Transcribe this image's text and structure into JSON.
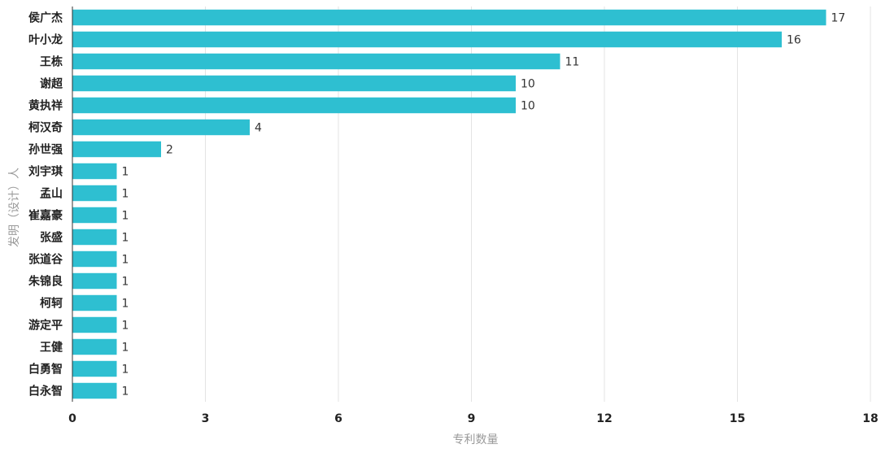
{
  "chart_data": {
    "type": "bar",
    "orientation": "horizontal",
    "categories": [
      "侯广杰",
      "叶小龙",
      "王栋",
      "谢超",
      "黄执祥",
      "柯汉奇",
      "孙世强",
      "刘宇琪",
      "孟山",
      "崔嘉豪",
      "张盛",
      "张道谷",
      "朱锦良",
      "柯轲",
      "游定平",
      "王健",
      "白勇智",
      "白永智"
    ],
    "values": [
      17,
      16,
      11,
      10,
      10,
      4,
      2,
      1,
      1,
      1,
      1,
      1,
      1,
      1,
      1,
      1,
      1,
      1
    ],
    "xlabel": "专利数量",
    "ylabel": "发明（设计）人",
    "xlim": [
      0,
      18
    ],
    "xticks": [
      0,
      3,
      6,
      9,
      12,
      15,
      18
    ],
    "grid": true,
    "bar_color": "#2ebfd1",
    "data_labels": true
  }
}
